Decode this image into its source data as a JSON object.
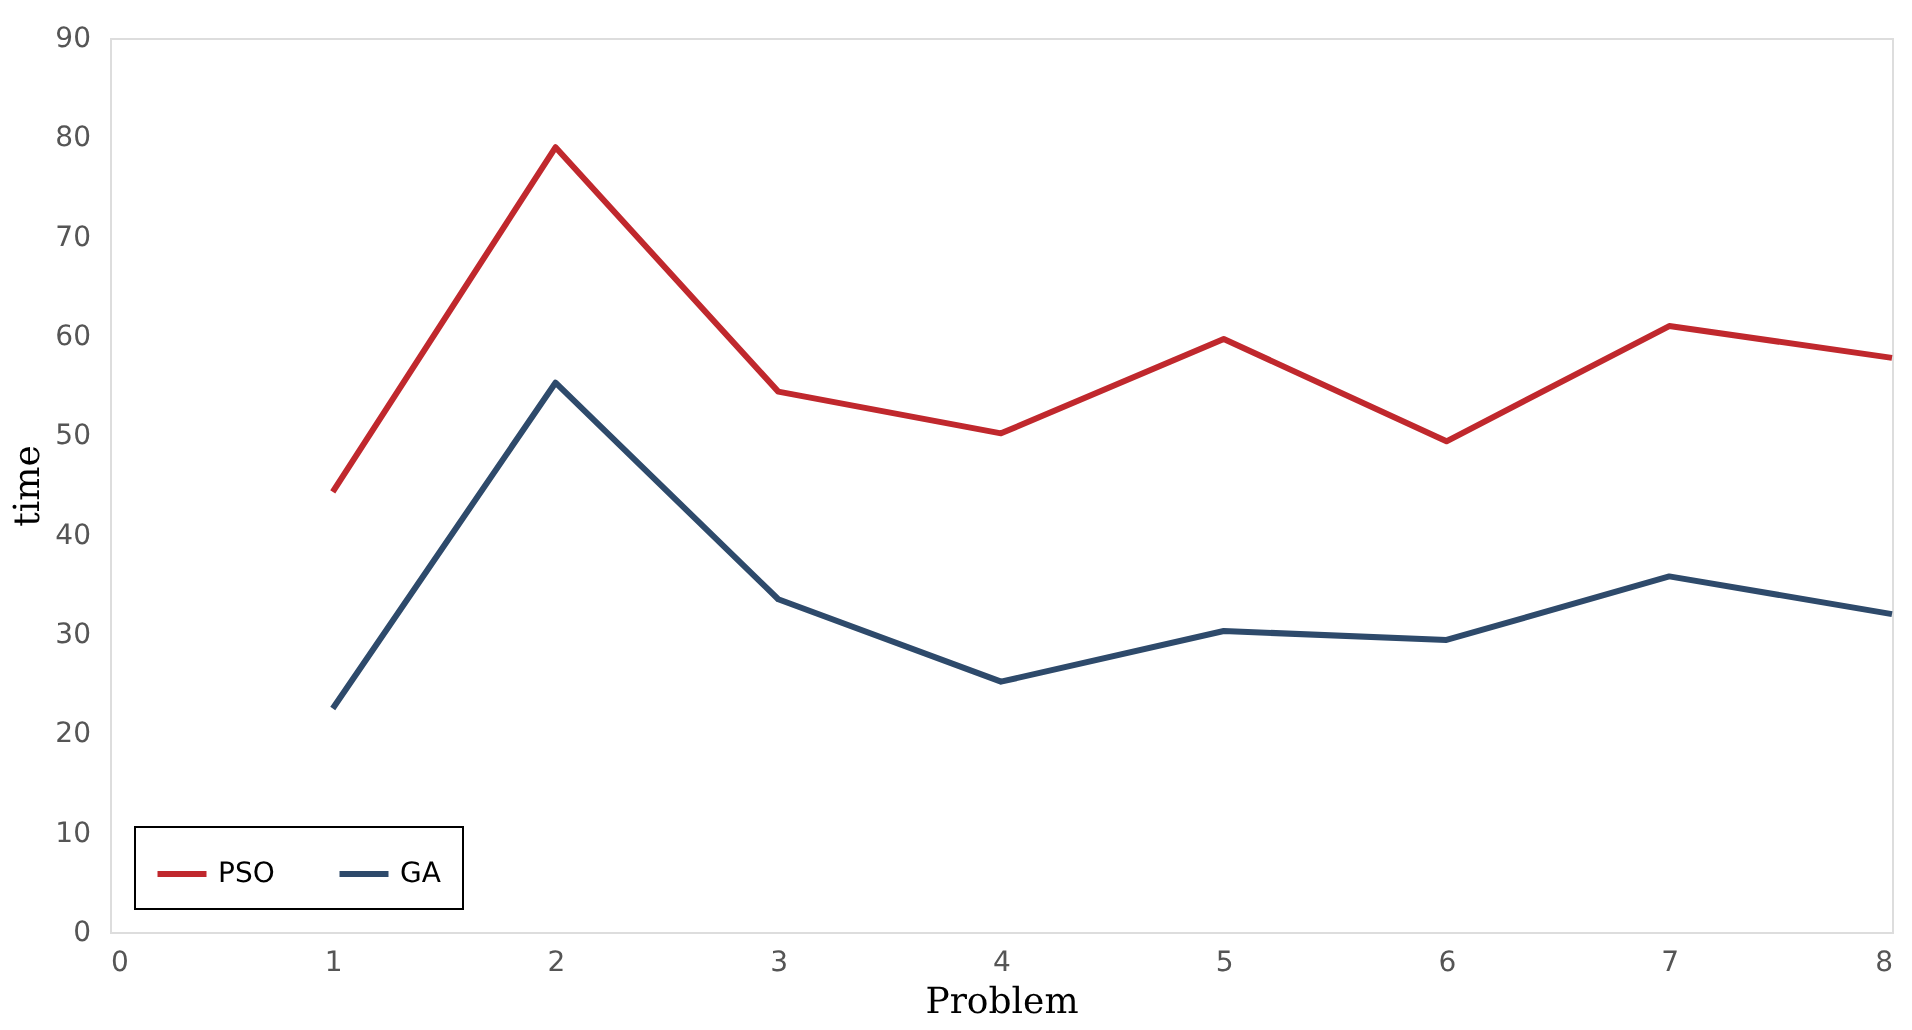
{
  "chart_data": {
    "type": "line",
    "xlabel": "Problem",
    "ylabel": "time",
    "x": [
      1,
      2,
      3,
      4,
      5,
      6,
      7,
      8
    ],
    "series": [
      {
        "name": "PSO",
        "color": "#c0282d",
        "values": [
          44.3,
          79,
          54.4,
          50.2,
          59.7,
          49.4,
          61,
          57.8
        ]
      },
      {
        "name": "GA",
        "color": "#2e4a6b",
        "values": [
          22.5,
          55.3,
          33.5,
          25.2,
          30.3,
          29.4,
          35.8,
          32
        ]
      }
    ],
    "xlim": [
      0,
      8
    ],
    "xticks": [
      0,
      1,
      2,
      3,
      4,
      5,
      6,
      7,
      8
    ],
    "ylim": [
      0,
      90
    ],
    "yticks": [
      0,
      10,
      20,
      30,
      40,
      50,
      60,
      70,
      80,
      90
    ],
    "grid": false,
    "legend": "bottom left",
    "marker": "none",
    "line_style": "solid"
  }
}
